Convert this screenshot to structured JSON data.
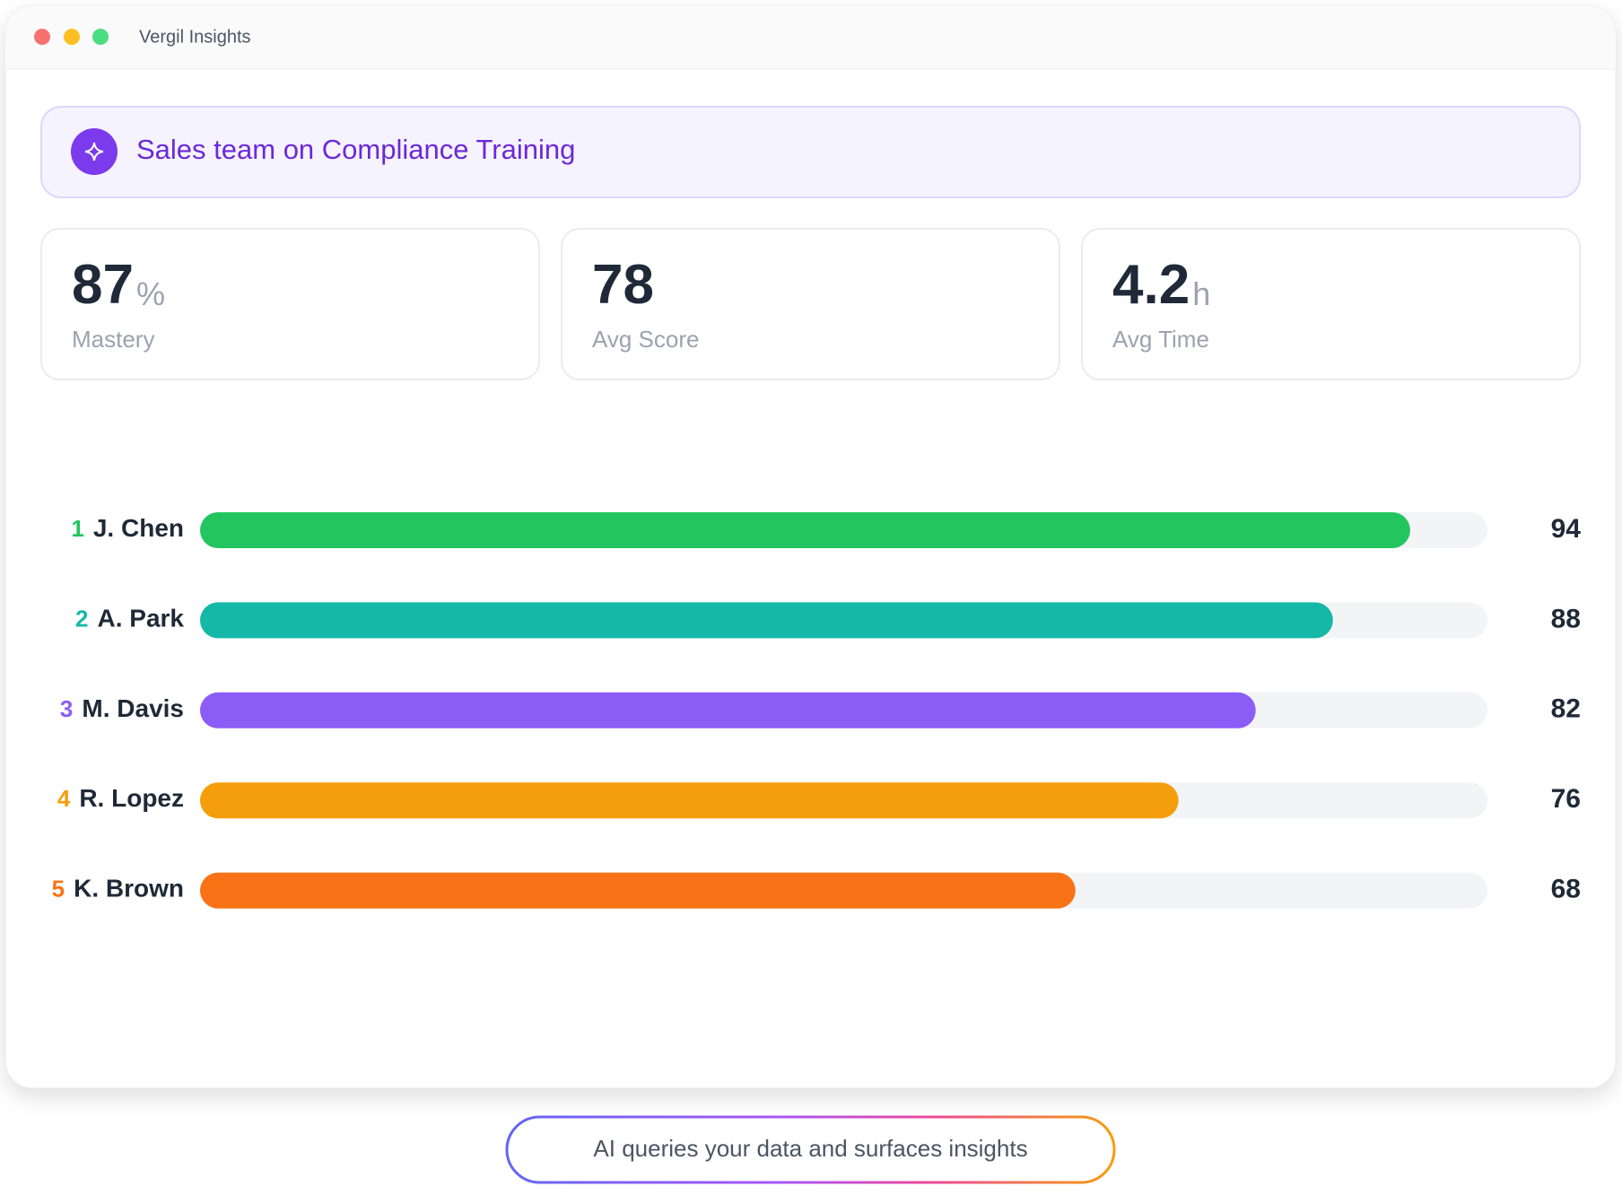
{
  "window": {
    "title": "Vergil Insights"
  },
  "banner": {
    "text": "Sales team on Compliance Training"
  },
  "stats": [
    {
      "value": 87,
      "unit": "%",
      "label": "Mastery"
    },
    {
      "value": 78,
      "label": "Avg Score"
    },
    {
      "value": 4.2,
      "unit": "h",
      "label": "Avg Time"
    }
  ],
  "leaderboard": {
    "xlim": [
      0,
      100
    ],
    "rows": [
      {
        "rank": 1,
        "name": "J. Chen",
        "score": 94,
        "color": "#22c55e"
      },
      {
        "rank": 2,
        "name": "A. Park",
        "score": 88,
        "color": "#14b8a6"
      },
      {
        "rank": 3,
        "name": "M. Davis",
        "score": 82,
        "color": "#8b5cf6"
      },
      {
        "rank": 4,
        "name": "R. Lopez",
        "score": 76,
        "color": "#f59e0b"
      },
      {
        "rank": 5,
        "name": "K. Brown",
        "score": 68,
        "color": "#f97316"
      }
    ]
  },
  "footer": {
    "text": "AI queries your data and surfaces insights"
  }
}
